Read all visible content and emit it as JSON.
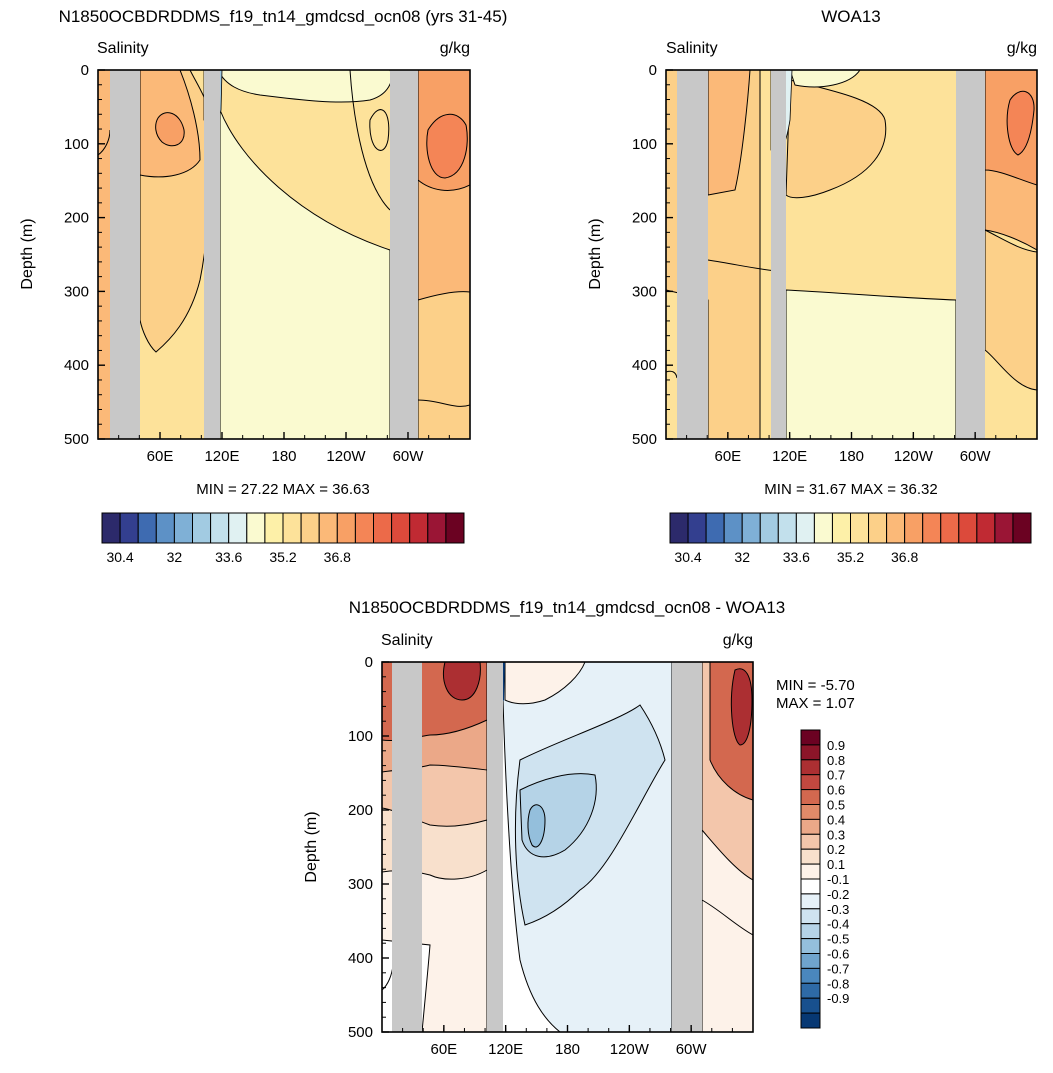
{
  "panels": {
    "model": {
      "title": "N1850OCBDRDDMS_f19_tn14_gmdcsd_ocn08 (yrs 31-45)",
      "left_label": "Salinity",
      "right_label": "g/kg",
      "ylabel": "Depth (m)",
      "stats": "MIN =  27.22  MAX =  36.63"
    },
    "obs": {
      "title": "WOA13",
      "left_label": "Salinity",
      "right_label": "g/kg",
      "ylabel": "Depth (m)",
      "stats": "MIN =  31.67  MAX =  36.32"
    },
    "diff": {
      "title": "N1850OCBDRDDMS_f19_tn14_gmdcsd_ocn08 - WOA13",
      "left_label": "Salinity",
      "right_label": "g/kg",
      "ylabel": "Depth (m)",
      "stats_min": "MIN =  -5.70",
      "stats_max": "MAX =   1.07"
    }
  },
  "colors": {
    "salinity_scale": [
      "#2c2a6b",
      "#333f8f",
      "#3e6bb1",
      "#5d91c6",
      "#7fb0d6",
      "#a2cbe2",
      "#c2e0ec",
      "#e0f1f2",
      "#fafad0",
      "#fdf0a8",
      "#fde29a",
      "#fcd089",
      "#fbb978",
      "#f8a065",
      "#f48556",
      "#ec6a49",
      "#dc4a3b",
      "#c02a33",
      "#9a1535",
      "#6b0222"
    ],
    "diff_scale": [
      "#6b0222",
      "#8c1529",
      "#ac2f32",
      "#c24840",
      "#d3684f",
      "#e08a69",
      "#eba888",
      "#f3c6ab",
      "#f8e0cc",
      "#fdf2e9",
      "#ffffff",
      "#e6f1f8",
      "#cfe3f0",
      "#b5d3e7",
      "#94bfdc",
      "#6fa4cd",
      "#4a87bd",
      "#2e6aa6",
      "#18508e",
      "#073873"
    ],
    "land": "#c8c8c8"
  },
  "chart_data": [
    {
      "type": "contour",
      "panel": "model",
      "variable": "Salinity",
      "units": "g/kg",
      "xlabel": "",
      "ylabel": "Depth (m)",
      "x_ticks": [
        "60E",
        "120E",
        "180",
        "120W",
        "60W"
      ],
      "y_ticks": [
        0,
        100,
        200,
        300,
        400,
        500
      ],
      "ylim": [
        500,
        0
      ],
      "min": 27.22,
      "max": 36.63,
      "colorbar_labels": [
        "30.4",
        "32",
        "33.6",
        "35.2",
        "36.8"
      ],
      "colorbar_n": 20
    },
    {
      "type": "contour",
      "panel": "obs",
      "variable": "Salinity",
      "units": "g/kg",
      "xlabel": "",
      "ylabel": "Depth (m)",
      "x_ticks": [
        "60E",
        "120E",
        "180",
        "120W",
        "60W"
      ],
      "y_ticks": [
        0,
        100,
        200,
        300,
        400,
        500
      ],
      "ylim": [
        500,
        0
      ],
      "min": 31.67,
      "max": 36.32,
      "colorbar_labels": [
        "30.4",
        "32",
        "33.6",
        "35.2",
        "36.8"
      ],
      "colorbar_n": 20
    },
    {
      "type": "contour",
      "panel": "diff",
      "variable": "Salinity",
      "units": "g/kg",
      "xlabel": "",
      "ylabel": "Depth (m)",
      "x_ticks": [
        "60E",
        "120E",
        "180",
        "120W",
        "60W"
      ],
      "y_ticks": [
        0,
        100,
        200,
        300,
        400,
        500
      ],
      "ylim": [
        500,
        0
      ],
      "min": -5.7,
      "max": 1.07,
      "colorbar_labels": [
        "0.9",
        "0.8",
        "0.7",
        "0.6",
        "0.5",
        "0.4",
        "0.3",
        "0.2",
        "0.1",
        "-0.1",
        "-0.2",
        "-0.3",
        "-0.4",
        "-0.5",
        "-0.6",
        "-0.7",
        "-0.8",
        "-0.9"
      ],
      "colorbar_n": 20
    }
  ]
}
